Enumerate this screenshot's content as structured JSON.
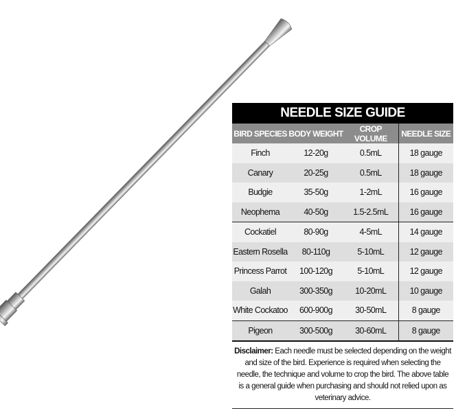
{
  "guide": {
    "title": "NEEDLE SIZE GUIDE",
    "headers": [
      "BIRD SPECIES",
      "BODY WEIGHT",
      "CROP VOLUME",
      "NEEDLE SIZE"
    ],
    "rows": [
      [
        "Finch",
        "12-20g",
        "0.5mL",
        "18 gauge"
      ],
      [
        "Canary",
        "20-25g",
        "0.5mL",
        "18 gauge"
      ],
      [
        "Budgie",
        "35-50g",
        "1-2mL",
        "16 gauge"
      ],
      [
        "Neophema",
        "40-50g",
        "1.5-2.5mL",
        "16 gauge"
      ],
      [
        "Cockatiel",
        "80-90g",
        "4-5mL",
        "14 gauge"
      ],
      [
        "Eastern Rosella",
        "80-110g",
        "5-10mL",
        "12 gauge"
      ],
      [
        "Princess Parrot",
        "100-120g",
        "5-10mL",
        "12 gauge"
      ],
      [
        "Galah",
        "300-350g",
        "10-20mL",
        "10 gauge"
      ],
      [
        "White Cockatoo",
        "600-900g",
        "30-50mL",
        "8 gauge"
      ],
      [
        "Pigeon",
        "300-500g",
        "30-60mL",
        "8 gauge"
      ]
    ],
    "disclaimer_label": "Disclaimer:",
    "disclaimer_text": " Each needle must be selected depending on the weight and size of the bird. Experience is required when selecting the needle, the technique and volume to crop the bird. The above table is a general guide when purchasing and should not relied upon as veterinary advice.",
    "colors": {
      "title_bg": "#000000",
      "header_bg": "#8c8c8c",
      "row_light": "#efefef",
      "row_dark": "#dedede"
    }
  },
  "image": {
    "subject": "stainless-steel-crop-needle"
  }
}
